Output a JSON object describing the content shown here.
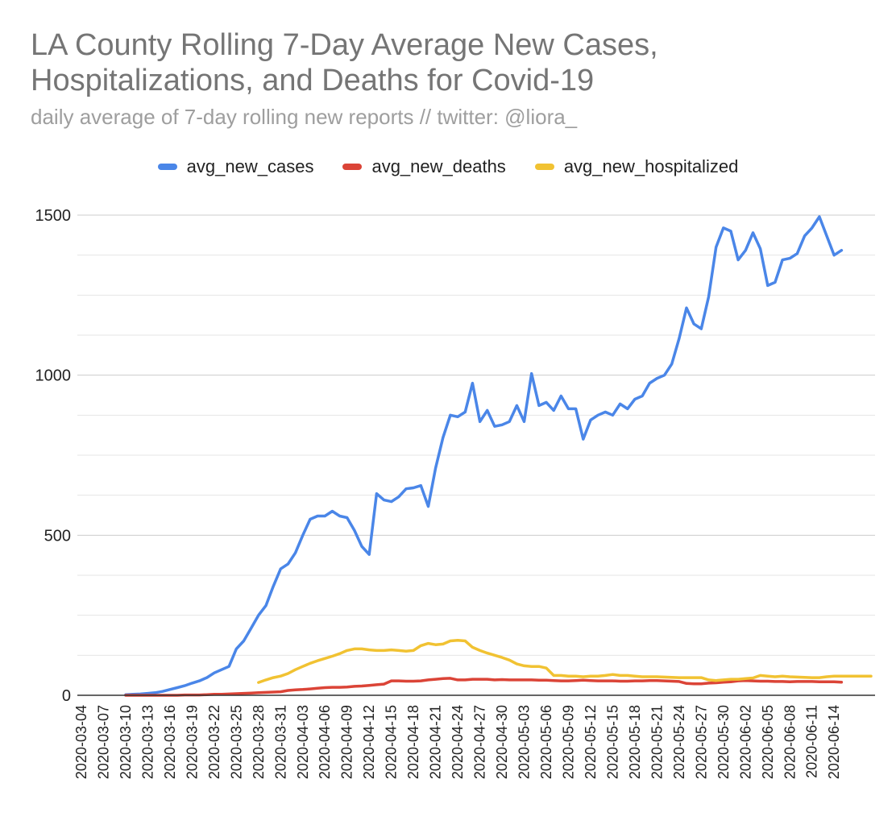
{
  "chart_data": {
    "type": "line",
    "title": "LA County Rolling 7-Day Average New Cases, Hospitalizations, and Deaths for Covid-19",
    "title_lines": [
      "LA County Rolling 7-Day Average New Cases,",
      "Hospitalizations, and Deaths for Covid-19"
    ],
    "subtitle": "daily average of 7-day rolling new reports // twitter: @liora_",
    "x_start": "2020-03-04",
    "num_days": 108,
    "tick_every": 3,
    "ylim": [
      0,
      1500
    ],
    "y_ticks": [
      0,
      500,
      1000,
      1500
    ],
    "y_tick_labels": [
      "0",
      "500",
      "1000",
      "1500"
    ],
    "minor_grid_step": 125,
    "x_tick_labels": [
      "2020-03-04",
      "2020-03-07",
      "2020-03-10",
      "2020-03-13",
      "2020-03-16",
      "2020-03-19",
      "2020-03-22",
      "2020-03-25",
      "2020-03-28",
      "2020-03-31",
      "2020-04-03",
      "2020-04-06",
      "2020-04-09",
      "2020-04-12",
      "2020-04-15",
      "2020-04-18",
      "2020-04-21",
      "2020-04-24",
      "2020-04-27",
      "2020-04-30",
      "2020-05-03",
      "2020-05-06",
      "2020-05-09",
      "2020-05-12",
      "2020-05-15",
      "2020-05-18",
      "2020-05-21",
      "2020-05-24",
      "2020-05-27",
      "2020-05-30",
      "2020-06-02",
      "2020-06-05",
      "2020-06-08",
      "2020-06-11",
      "2020-06-14"
    ],
    "legend_position": "top",
    "series": [
      {
        "name": "avg_new_cases",
        "color": "#4a86e8",
        "start_index": 6,
        "values": [
          2,
          3,
          4,
          6,
          8,
          12,
          18,
          24,
          30,
          38,
          45,
          55,
          70,
          80,
          90,
          145,
          170,
          210,
          250,
          280,
          340,
          395,
          410,
          445,
          500,
          550,
          560,
          560,
          575,
          560,
          555,
          515,
          465,
          440,
          630,
          610,
          605,
          620,
          645,
          648,
          655,
          590,
          710,
          805,
          875,
          870,
          885,
          975,
          855,
          890,
          840,
          845,
          855,
          905,
          855,
          1005,
          905,
          915,
          890,
          935,
          895,
          895,
          800,
          860,
          875,
          885,
          875,
          910,
          895,
          925,
          935,
          975,
          990,
          1000,
          1035,
          1115,
          1210,
          1160,
          1145,
          1245,
          1400,
          1460,
          1450,
          1360,
          1390,
          1445,
          1395,
          1280,
          1290,
          1360,
          1365,
          1380,
          1435,
          1460,
          1495,
          1435,
          1375,
          1390
        ]
      },
      {
        "name": "avg_new_deaths",
        "color": "#db4437",
        "start_index": 6,
        "values": [
          0,
          0,
          0,
          0,
          0,
          0,
          0,
          0,
          1,
          1,
          1,
          2,
          3,
          3,
          4,
          5,
          6,
          7,
          8,
          9,
          10,
          11,
          15,
          17,
          18,
          20,
          22,
          24,
          25,
          25,
          26,
          28,
          29,
          31,
          33,
          35,
          45,
          45,
          44,
          44,
          45,
          48,
          50,
          52,
          53,
          48,
          48,
          50,
          50,
          50,
          48,
          49,
          48,
          48,
          48,
          48,
          47,
          47,
          46,
          45,
          45,
          46,
          47,
          46,
          45,
          45,
          45,
          44,
          44,
          45,
          45,
          46,
          46,
          45,
          44,
          43,
          37,
          36,
          36,
          38,
          39,
          41,
          42,
          45,
          46,
          45,
          44,
          44,
          43,
          43,
          42,
          43,
          43,
          43,
          42,
          42,
          42,
          41
        ]
      },
      {
        "name": "avg_new_hospitalized",
        "color": "#f1c232",
        "start_index": 24,
        "values": [
          40,
          48,
          55,
          60,
          68,
          80,
          90,
          100,
          108,
          115,
          122,
          130,
          140,
          145,
          145,
          142,
          140,
          140,
          142,
          140,
          138,
          140,
          155,
          162,
          158,
          160,
          170,
          172,
          170,
          150,
          140,
          132,
          125,
          118,
          110,
          98,
          92,
          90,
          90,
          85,
          62,
          62,
          60,
          60,
          58,
          60,
          60,
          62,
          65,
          62,
          62,
          60,
          58,
          58,
          58,
          57,
          56,
          55,
          55,
          55,
          55,
          48,
          46,
          48,
          50,
          50,
          52,
          54,
          62,
          60,
          58,
          60,
          58,
          57,
          56,
          55,
          55,
          58,
          60,
          60,
          60,
          60,
          60,
          60
        ]
      }
    ]
  }
}
